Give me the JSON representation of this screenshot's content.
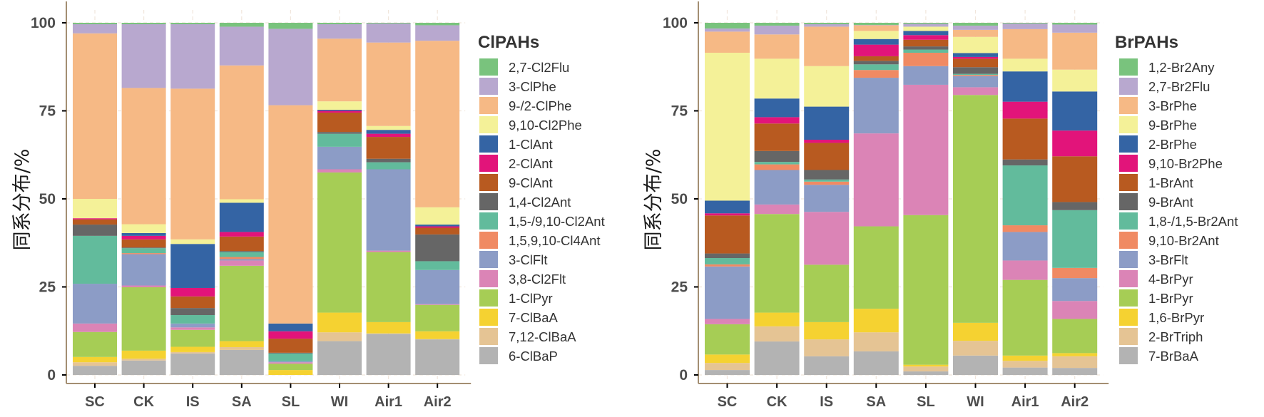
{
  "chart_data": [
    {
      "type": "bar",
      "stacked": true,
      "title": "",
      "xlabel": "",
      "ylabel": "同系分布/%",
      "ylim": [
        0,
        100
      ],
      "yticks": [
        "0",
        "25",
        "50",
        "75",
        "100"
      ],
      "grid": true,
      "legend_title": "ClPAHs",
      "legend_position": "right",
      "categories": [
        "SC",
        "CK",
        "IS",
        "SA",
        "SL",
        "WI",
        "Air1",
        "Air2"
      ],
      "series_order_note": "series listed bottom-to-top of stack",
      "series": [
        {
          "name": "6-ClBaP",
          "color": "#b3b3b3",
          "values": [
            2.6,
            4.1,
            6.1,
            7.1,
            0.0,
            9.6,
            11.7,
            10.1
          ]
        },
        {
          "name": "7,12-ClBaA",
          "color": "#e5c494",
          "values": [
            1.0,
            0.5,
            0.4,
            0.8,
            0.0,
            2.5,
            0.1,
            0.1
          ]
        },
        {
          "name": "7-ClBaA",
          "color": "#f5d231",
          "values": [
            1.5,
            2.3,
            1.5,
            1.7,
            1.4,
            5.6,
            3.2,
            2.2
          ]
        },
        {
          "name": "1-ClPyr",
          "color": "#a6cd55",
          "values": [
            7.1,
            18.0,
            4.8,
            21.4,
            1.8,
            39.8,
            19.9,
            7.5
          ]
        },
        {
          "name": "3,8-Cl2Flt",
          "color": "#db84b6",
          "values": [
            2.4,
            0.5,
            0.7,
            1.5,
            0.4,
            0.9,
            0.4,
            0.2
          ]
        },
        {
          "name": "3-ClFlt",
          "color": "#8c9cc6",
          "values": [
            11.3,
            8.9,
            1.1,
            0.4,
            0.3,
            6.4,
            23.1,
            9.7
          ]
        },
        {
          "name": "1,5,9,10-Cl4Ant",
          "color": "#f08a63",
          "values": [
            0.0,
            0.3,
            0.0,
            0.6,
            0.0,
            0.0,
            0.0,
            0.0
          ]
        },
        {
          "name": "1,5-/9,10-Cl2Ant",
          "color": "#62bb9c",
          "values": [
            13.6,
            1.4,
            2.4,
            1.4,
            2.2,
            3.7,
            2.0,
            2.5
          ]
        },
        {
          "name": "1,4-Cl2Ant",
          "color": "#666666",
          "values": [
            3.2,
            0.2,
            2.0,
            0.3,
            0.2,
            0.5,
            1.0,
            7.6
          ]
        },
        {
          "name": "9-ClAnt",
          "color": "#b85a20",
          "values": [
            1.5,
            2.3,
            3.3,
            4.1,
            4.0,
            5.5,
            6.2,
            1.9
          ]
        },
        {
          "name": "2-ClAnt",
          "color": "#e2147a",
          "values": [
            0.3,
            1.0,
            2.4,
            1.3,
            2.1,
            0.5,
            0.9,
            0.4
          ]
        },
        {
          "name": "1-ClAnt",
          "color": "#3464a4",
          "values": [
            0.0,
            0.8,
            12.5,
            8.3,
            2.2,
            0.3,
            1.1,
            0.5
          ]
        },
        {
          "name": "9,10-Cl2Phe",
          "color": "#f4f198",
          "values": [
            5.5,
            2.5,
            1.3,
            1.0,
            0.0,
            2.4,
            1.1,
            4.9
          ]
        },
        {
          "name": "9-/2-ClPhe",
          "color": "#f6b985",
          "values": [
            47.0,
            38.7,
            42.8,
            38.0,
            62.0,
            17.8,
            23.7,
            47.3
          ]
        },
        {
          "name": "3-ClPhe",
          "color": "#b8a8cf",
          "values": [
            2.6,
            18.1,
            18.3,
            11.0,
            21.7,
            4.1,
            5.4,
            4.4
          ]
        },
        {
          "name": "2,7-Cl2Flu",
          "color": "#79c37d",
          "values": [
            0.4,
            0.4,
            0.4,
            1.1,
            1.7,
            0.4,
            0.2,
            0.7
          ]
        }
      ]
    },
    {
      "type": "bar",
      "stacked": true,
      "title": "",
      "xlabel": "",
      "ylabel": "同系分布/%",
      "ylim": [
        0,
        100
      ],
      "yticks": [
        "0",
        "25",
        "50",
        "75",
        "100"
      ],
      "grid": true,
      "legend_title": "BrPAHs",
      "legend_position": "right",
      "categories": [
        "SC",
        "CK",
        "IS",
        "SA",
        "SL",
        "WI",
        "Air1",
        "Air2"
      ],
      "series_order_note": "series listed bottom-to-top of stack",
      "series": [
        {
          "name": "7-BrBaA",
          "color": "#b3b3b3",
          "values": [
            1.4,
            9.5,
            5.3,
            6.7,
            1.0,
            5.5,
            2.1,
            2.0
          ]
        },
        {
          "name": "2-BrTriph",
          "color": "#e5c494",
          "values": [
            2.0,
            4.3,
            4.8,
            5.4,
            1.4,
            4.2,
            1.9,
            3.3
          ]
        },
        {
          "name": "1,6-BrPyr",
          "color": "#f5d231",
          "values": [
            2.4,
            3.9,
            4.9,
            6.7,
            0.5,
            5.1,
            1.5,
            0.9
          ]
        },
        {
          "name": "1-BrPyr",
          "color": "#a6cd55",
          "values": [
            8.6,
            28.0,
            16.3,
            23.4,
            42.5,
            64.7,
            21.5,
            9.7
          ]
        },
        {
          "name": "4-BrPyr",
          "color": "#db84b6",
          "values": [
            1.5,
            2.7,
            15.0,
            26.4,
            37.0,
            2.2,
            5.5,
            5.1
          ]
        },
        {
          "name": "3-BrFlt",
          "color": "#8c9cc6",
          "values": [
            14.9,
            9.8,
            7.7,
            15.8,
            5.3,
            3.2,
            8.1,
            6.5
          ]
        },
        {
          "name": "9,10-Br2Ant",
          "color": "#f08a63",
          "values": [
            0.6,
            1.6,
            0.9,
            2.2,
            3.8,
            0.3,
            1.9,
            2.9
          ]
        },
        {
          "name": "1,8-/1,5-Br2Ant",
          "color": "#62bb9c",
          "values": [
            1.8,
            0.7,
            0.6,
            1.6,
            0.9,
            0.3,
            17.0,
            16.4
          ]
        },
        {
          "name": "9-BrAnt",
          "color": "#666666",
          "values": [
            1.3,
            3.1,
            2.7,
            1.0,
            0.9,
            1.9,
            1.7,
            2.3
          ]
        },
        {
          "name": "1-BrAnt",
          "color": "#b85a20",
          "values": [
            10.8,
            7.8,
            7.7,
            1.3,
            1.9,
            2.4,
            11.6,
            13.0
          ]
        },
        {
          "name": "9,10-Br2Phe",
          "color": "#e2147a",
          "values": [
            0.6,
            1.8,
            0.9,
            3.3,
            1.3,
            0.5,
            4.8,
            7.3
          ]
        },
        {
          "name": "2-BrPhe",
          "color": "#3464a4",
          "values": [
            3.6,
            5.3,
            9.4,
            1.6,
            1.2,
            1.1,
            8.6,
            11.1
          ]
        },
        {
          "name": "9-BrPhe",
          "color": "#f4f198",
          "values": [
            42.0,
            11.3,
            11.5,
            2.3,
            1.2,
            4.6,
            3.6,
            6.2
          ]
        },
        {
          "name": "3-BrPhe",
          "color": "#f6b985",
          "values": [
            6.0,
            6.9,
            11.2,
            1.6,
            0.0,
            2.0,
            8.4,
            10.5
          ]
        },
        {
          "name": "2,7-Br2Flu",
          "color": "#b8a8cf",
          "values": [
            0.9,
            2.5,
            0.7,
            0.1,
            0.8,
            1.2,
            1.6,
            2.3
          ]
        },
        {
          "name": "1,2-Br2Any",
          "color": "#79c37d",
          "values": [
            1.6,
            0.8,
            0.4,
            0.6,
            0.3,
            0.8,
            0.2,
            0.5
          ]
        }
      ]
    }
  ]
}
